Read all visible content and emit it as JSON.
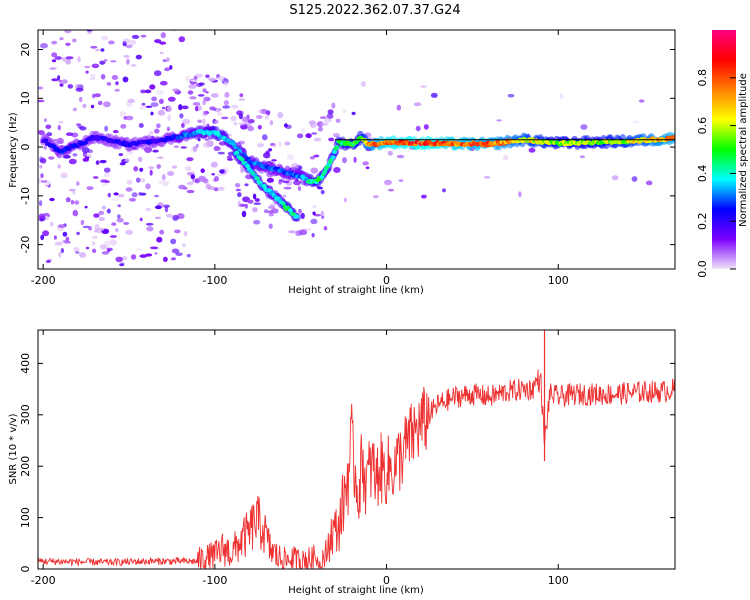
{
  "figure_title": "S125.2022.362.07.37.G24",
  "chart_data": [
    {
      "type": "heatmap",
      "xlabel": "Height of straight line (km)",
      "ylabel": "Frequency (Hz)",
      "xlim": [
        -203,
        168
      ],
      "ylim": [
        -25,
        24
      ],
      "xticks": [
        -200,
        -100,
        0,
        100
      ],
      "yticks": [
        -20,
        -10,
        0,
        10,
        20
      ],
      "ridge_line_color": "#000000",
      "colormap": [
        "#f2e4f7",
        "#7a00ff",
        "#0000ff",
        "#00ffff",
        "#00ff00",
        "#ffff00",
        "#ff8000",
        "#ff0000",
        "#ff0080"
      ],
      "colorbar": {
        "label": "Normalized spectral amplitude",
        "range": [
          0.0,
          1.0
        ],
        "ticks": [
          "0.0",
          "0.2",
          "0.4",
          "0.6",
          "0.8"
        ],
        "tick_values": [
          0.0,
          0.2,
          0.4,
          0.6,
          0.8
        ]
      },
      "ridge": [
        {
          "x": -200,
          "f": 1.5,
          "amp": 0.2
        },
        {
          "x": -190,
          "f": -1.0,
          "amp": 0.25
        },
        {
          "x": -170,
          "f": 2.0,
          "amp": 0.2
        },
        {
          "x": -150,
          "f": 0.5,
          "amp": 0.22
        },
        {
          "x": -130,
          "f": 1.5,
          "amp": 0.2
        },
        {
          "x": -110,
          "f": 3.0,
          "amp": 0.35
        },
        {
          "x": -100,
          "f": 3.0,
          "amp": 0.4
        },
        {
          "x": -90,
          "f": 1.0,
          "amp": 0.35
        },
        {
          "x": -80,
          "f": -3.0,
          "amp": 0.3
        },
        {
          "x": -70,
          "f": -4.0,
          "amp": 0.3
        },
        {
          "x": -60,
          "f": -5.0,
          "amp": 0.28
        },
        {
          "x": -50,
          "f": -6.0,
          "amp": 0.3
        },
        {
          "x": -45,
          "f": -7.0,
          "amp": 0.4
        },
        {
          "x": -40,
          "f": -7.0,
          "amp": 0.45
        },
        {
          "x": -33,
          "f": -3.5,
          "amp": 0.4
        },
        {
          "x": -28,
          "f": 1.0,
          "amp": 0.45
        },
        {
          "x": -20,
          "f": 0.5,
          "amp": 0.5
        },
        {
          "x": -15,
          "f": 2.0,
          "amp": 0.55
        },
        {
          "x": -10,
          "f": 0.5,
          "amp": 0.7
        },
        {
          "x": 0,
          "f": 1.0,
          "amp": 0.8
        },
        {
          "x": 20,
          "f": 0.8,
          "amp": 0.85
        },
        {
          "x": 40,
          "f": 0.7,
          "amp": 0.78
        },
        {
          "x": 60,
          "f": 0.6,
          "amp": 0.75
        },
        {
          "x": 80,
          "f": 1.5,
          "amp": 0.65
        },
        {
          "x": 100,
          "f": 0.8,
          "amp": 0.55
        },
        {
          "x": 120,
          "f": 1.0,
          "amp": 0.55
        },
        {
          "x": 140,
          "f": 1.2,
          "amp": 0.6
        },
        {
          "x": 160,
          "f": 1.6,
          "amp": 0.72
        },
        {
          "x": 168,
          "f": 1.8,
          "amp": 0.75
        }
      ],
      "branch": [
        {
          "x": -88,
          "f": -1.0,
          "amp": 0.35
        },
        {
          "x": -80,
          "f": -4.5,
          "amp": 0.4
        },
        {
          "x": -72,
          "f": -8.0,
          "amp": 0.35
        },
        {
          "x": -65,
          "f": -10.0,
          "amp": 0.35
        },
        {
          "x": -58,
          "f": -12.5,
          "amp": 0.45
        },
        {
          "x": -52,
          "f": -14.5,
          "amp": 0.4
        }
      ]
    },
    {
      "type": "line",
      "xlabel": "Height of straight line (km)",
      "ylabel": "SNR (10 * v/v)",
      "xlim": [
        -203,
        168
      ],
      "ylim": [
        0,
        465
      ],
      "xticks": [
        -200,
        -100,
        0,
        100
      ],
      "yticks": [
        0,
        100,
        200,
        300,
        400
      ],
      "line_color": "#ee3030",
      "series": [
        {
          "x": [
            -200,
            -180,
            -160,
            -140,
            -120,
            -110,
            -100,
            -95,
            -90,
            -85,
            -80,
            -76,
            -72,
            -68,
            -64,
            -60,
            -56,
            -52,
            -48,
            -44,
            -40,
            -36,
            -32,
            -28,
            -24,
            -22,
            -20,
            -18,
            -16,
            -14,
            -12,
            -10,
            -8,
            -6,
            -4,
            -2,
            0,
            5,
            10,
            15,
            20,
            25,
            30,
            40,
            50,
            60,
            70,
            80,
            85,
            88,
            90,
            92,
            95,
            100,
            110,
            120,
            130,
            140,
            150,
            160,
            168
          ],
          "values": [
            15,
            14,
            13,
            15,
            15,
            15,
            25,
            40,
            30,
            55,
            70,
            95,
            80,
            40,
            25,
            15,
            20,
            15,
            20,
            15,
            25,
            20,
            70,
            80,
            150,
            200,
            230,
            180,
            150,
            220,
            160,
            190,
            200,
            170,
            200,
            190,
            190,
            200,
            230,
            260,
            280,
            300,
            320,
            335,
            340,
            335,
            345,
            350,
            350,
            370,
            360,
            240,
            340,
            335,
            340,
            340,
            340,
            342,
            345,
            345,
            350
          ]
        }
      ],
      "spike": {
        "x": 92,
        "top": 465,
        "bottom": 210
      }
    }
  ]
}
